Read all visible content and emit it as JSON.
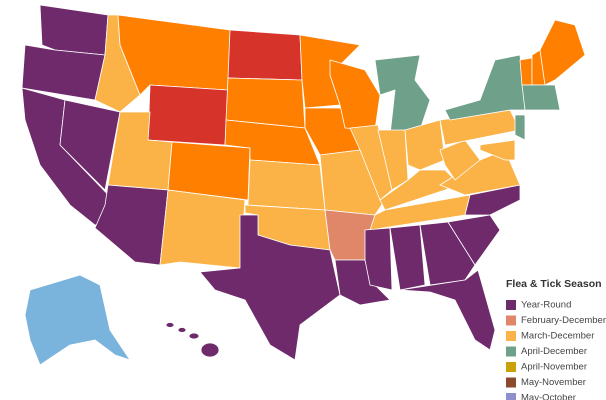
{
  "legend": {
    "title": "Flea & Tick Season",
    "items": [
      {
        "label": "Year-Round",
        "color": "#6e2a6b"
      },
      {
        "label": "February-December",
        "color": "#e0876a"
      },
      {
        "label": "March-December",
        "color": "#fbb347"
      },
      {
        "label": "April-December",
        "color": "#6fa08a"
      },
      {
        "label": "April-November",
        "color": "#c9a20a"
      },
      {
        "label": "May-November",
        "color": "#8b4a2b"
      },
      {
        "label": "May-October",
        "color": "#8f8fd0"
      }
    ]
  },
  "map": {
    "other_colors": [
      "#ff7f00",
      "#d6342b",
      "#7ab3dc"
    ]
  }
}
